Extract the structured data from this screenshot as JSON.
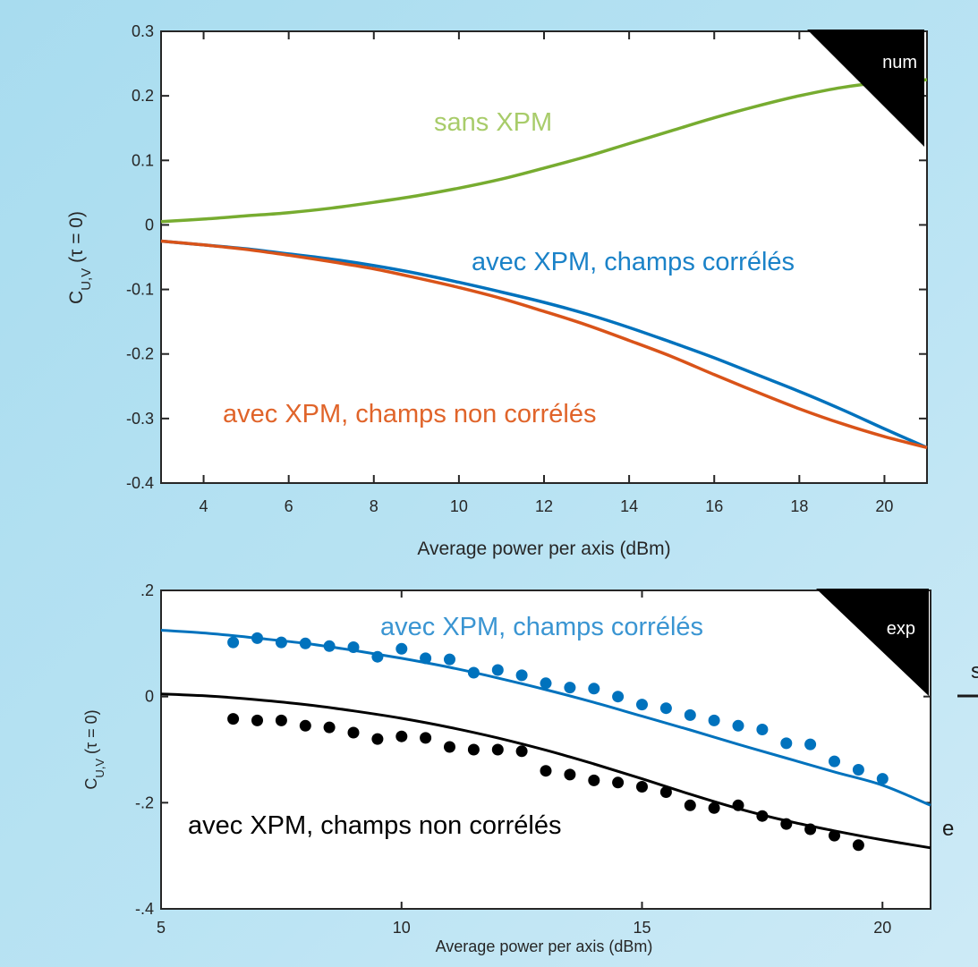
{
  "chart_data": [
    {
      "type": "line",
      "corner_label": "num",
      "xlabel": "Average power per axis (dBm)",
      "ylabel_main": "C",
      "ylabel_sub": "U,V",
      "ylabel_rest": " (τ = 0)",
      "xlim": [
        3,
        21
      ],
      "ylim": [
        -0.4,
        0.3
      ],
      "xticks": [
        4,
        6,
        8,
        10,
        12,
        14,
        16,
        18,
        20
      ],
      "yticks": [
        -0.4,
        -0.3,
        -0.2,
        -0.1,
        0,
        0.1,
        0.2,
        0.3
      ],
      "xtick_labels": [
        "4",
        "6",
        "8",
        "10",
        "12",
        "14",
        "16",
        "18",
        "20"
      ],
      "ytick_labels": [
        "-0.4",
        "-0.3",
        "-0.2",
        "-0.1",
        "0",
        "0.1",
        "0.2",
        "0.3"
      ],
      "series": [
        {
          "name": "sans XPM",
          "color": "#77ac30",
          "x": [
            3,
            4,
            5,
            6,
            7,
            8,
            9,
            10,
            11,
            12,
            13,
            14,
            15,
            16,
            17,
            18,
            19,
            20,
            21
          ],
          "y": [
            0.005,
            0.009,
            0.014,
            0.019,
            0.026,
            0.035,
            0.045,
            0.057,
            0.071,
            0.088,
            0.106,
            0.126,
            0.146,
            0.166,
            0.184,
            0.2,
            0.213,
            0.221,
            0.225
          ]
        },
        {
          "name": "avec XPM, champs corrélés",
          "color": "#0072bd",
          "x": [
            3,
            4,
            5,
            6,
            7,
            8,
            9,
            10,
            11,
            12,
            13,
            14,
            15,
            16,
            17,
            18,
            19,
            20,
            21
          ],
          "y": [
            -0.025,
            -0.031,
            -0.037,
            -0.045,
            -0.053,
            -0.063,
            -0.075,
            -0.089,
            -0.104,
            -0.12,
            -0.138,
            -0.159,
            -0.182,
            -0.206,
            -0.232,
            -0.258,
            -0.286,
            -0.316,
            -0.345
          ]
        },
        {
          "name": "avec XPM, champs non corrélés",
          "color": "#d95319",
          "x": [
            3,
            4,
            5,
            6,
            7,
            8,
            9,
            10,
            11,
            12,
            13,
            14,
            15,
            16,
            17,
            18,
            19,
            20,
            21
          ],
          "y": [
            -0.025,
            -0.031,
            -0.038,
            -0.047,
            -0.057,
            -0.068,
            -0.082,
            -0.097,
            -0.114,
            -0.134,
            -0.155,
            -0.179,
            -0.204,
            -0.232,
            -0.259,
            -0.285,
            -0.308,
            -0.328,
            -0.345
          ]
        }
      ]
    },
    {
      "type": "scatter",
      "corner_label": "exp",
      "xlabel": "Average power per axis (dBm)",
      "ylabel_main": "C",
      "ylabel_sub": "U,V",
      "ylabel_rest": " (τ = 0)",
      "xlim": [
        5,
        21
      ],
      "ylim": [
        -0.4,
        0.2
      ],
      "xticks": [
        5,
        10,
        15,
        20
      ],
      "yticks": [
        -0.4,
        -0.2,
        0,
        0.2
      ],
      "xtick_labels": [
        "5",
        "10",
        "15",
        "20"
      ],
      "ytick_labels": [
        "-.4",
        "-.2",
        "0",
        ".2"
      ],
      "fits": [
        {
          "color": "#0072bd",
          "x": [
            5,
            6,
            7,
            8,
            9,
            10,
            11,
            12,
            13,
            14,
            15,
            16,
            17,
            18,
            19,
            20,
            21
          ],
          "y": [
            0.125,
            0.119,
            0.11,
            0.1,
            0.087,
            0.072,
            0.055,
            0.035,
            0.013,
            -0.011,
            -0.037,
            -0.063,
            -0.09,
            -0.116,
            -0.142,
            -0.167,
            -0.205
          ]
        },
        {
          "color": "#000000",
          "x": [
            5,
            6,
            7,
            8,
            9,
            10,
            11,
            12,
            13,
            14,
            15,
            16,
            17,
            18,
            19,
            20,
            21
          ],
          "y": [
            0.005,
            0.001,
            -0.006,
            -0.015,
            -0.027,
            -0.041,
            -0.058,
            -0.078,
            -0.101,
            -0.127,
            -0.155,
            -0.184,
            -0.211,
            -0.234,
            -0.253,
            -0.27,
            -0.285
          ]
        }
      ],
      "series": [
        {
          "name": "avec XPM, champs corrélés",
          "color": "#0072bd",
          "x": [
            6.5,
            7,
            7.5,
            8,
            8.5,
            9,
            9.5,
            10,
            10.5,
            11,
            11.5,
            12,
            12.5,
            13,
            13.5,
            14,
            14.5,
            15,
            15.5,
            16,
            16.5,
            17,
            17.5,
            18,
            18.5,
            19,
            19.5,
            20
          ],
          "y": [
            0.102,
            0.11,
            0.102,
            0.1,
            0.095,
            0.093,
            0.075,
            0.09,
            0.072,
            0.07,
            0.045,
            0.05,
            0.04,
            0.025,
            0.017,
            0.015,
            0.0,
            -0.015,
            -0.022,
            -0.035,
            -0.045,
            -0.055,
            -0.062,
            -0.088,
            -0.09,
            -0.122,
            -0.138,
            -0.155
          ]
        },
        {
          "name": "avec XPM, champs non corrélés",
          "color": "#000000",
          "x": [
            6.5,
            7,
            7.5,
            8,
            8.5,
            9,
            9.5,
            10,
            10.5,
            11,
            11.5,
            12,
            12.5,
            13,
            13.5,
            14,
            14.5,
            15,
            15.5,
            16,
            16.5,
            17,
            17.5,
            18,
            18.5,
            19,
            19.5
          ],
          "y": [
            -0.042,
            -0.045,
            -0.045,
            -0.055,
            -0.058,
            -0.068,
            -0.08,
            -0.075,
            -0.078,
            -0.095,
            -0.1,
            -0.1,
            -0.103,
            -0.14,
            -0.147,
            -0.158,
            -0.162,
            -0.17,
            -0.18,
            -0.205,
            -0.21,
            -0.205,
            -0.225,
            -0.24,
            -0.25,
            -0.262,
            -0.28
          ]
        }
      ]
    }
  ],
  "edge_fragments": [
    "s",
    "e"
  ]
}
